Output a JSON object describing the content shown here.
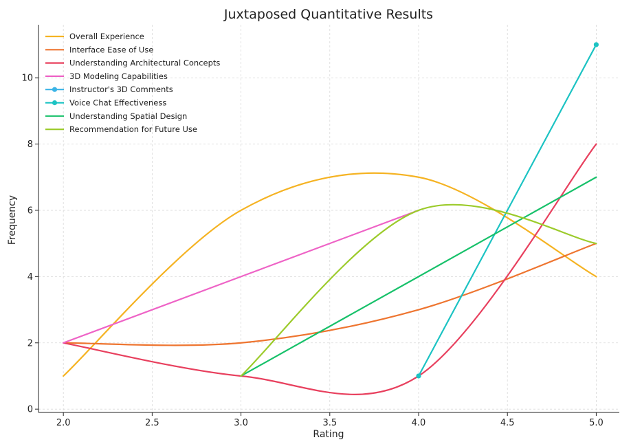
{
  "chart_data": {
    "type": "line",
    "title": "Juxtaposed Quantitative Results",
    "xlabel": "Rating",
    "ylabel": "Frequency",
    "xlim": [
      1.86,
      5.13
    ],
    "ylim": [
      -0.1,
      11.6
    ],
    "xticks": [
      2.0,
      2.5,
      3.0,
      3.5,
      4.0,
      4.5,
      5.0
    ],
    "xtick_labels": [
      "2.0",
      "2.5",
      "3.0",
      "3.5",
      "4.0",
      "4.5",
      "5.0"
    ],
    "yticks": [
      0,
      2,
      4,
      6,
      8,
      10
    ],
    "ytick_labels": [
      "0",
      "2",
      "4",
      "6",
      "8",
      "10"
    ],
    "grid": true,
    "legend_position": "top-left",
    "series": [
      {
        "name": "Overall Experience",
        "color": "#f5b323",
        "smooth": true,
        "markers": false,
        "x": [
          2,
          3,
          4,
          5
        ],
        "y": [
          1,
          6,
          7,
          4
        ]
      },
      {
        "name": "Interface Ease of Use",
        "color": "#ee7530",
        "smooth": true,
        "markers": false,
        "x": [
          2,
          3,
          4,
          5
        ],
        "y": [
          2,
          2,
          3,
          5
        ]
      },
      {
        "name": "Understanding Architectural Concepts",
        "color": "#e8405e",
        "smooth": true,
        "markers": false,
        "x": [
          2,
          3,
          4,
          5
        ],
        "y": [
          2,
          1,
          1,
          8
        ]
      },
      {
        "name": "3D Modeling Capabilities",
        "color": "#ee63c6",
        "smooth": false,
        "markers": false,
        "x": [
          2,
          3,
          4
        ],
        "y": [
          2,
          4,
          6
        ]
      },
      {
        "name": "Instructor's 3D Comments",
        "color": "#3bb4e6",
        "smooth": false,
        "markers": true,
        "x": [],
        "y": []
      },
      {
        "name": "Voice Chat Effectiveness",
        "color": "#1cc3c3",
        "smooth": false,
        "markers": true,
        "x": [
          4,
          5
        ],
        "y": [
          1,
          11
        ]
      },
      {
        "name": "Understanding Spatial Design",
        "color": "#17c16a",
        "smooth": false,
        "markers": false,
        "x": [
          3,
          4,
          5
        ],
        "y": [
          1,
          4,
          7
        ]
      },
      {
        "name": "Recommendation for Future Use",
        "color": "#9ccb2b",
        "smooth": true,
        "markers": false,
        "x": [
          3,
          4,
          5
        ],
        "y": [
          1,
          6,
          5
        ]
      }
    ]
  }
}
